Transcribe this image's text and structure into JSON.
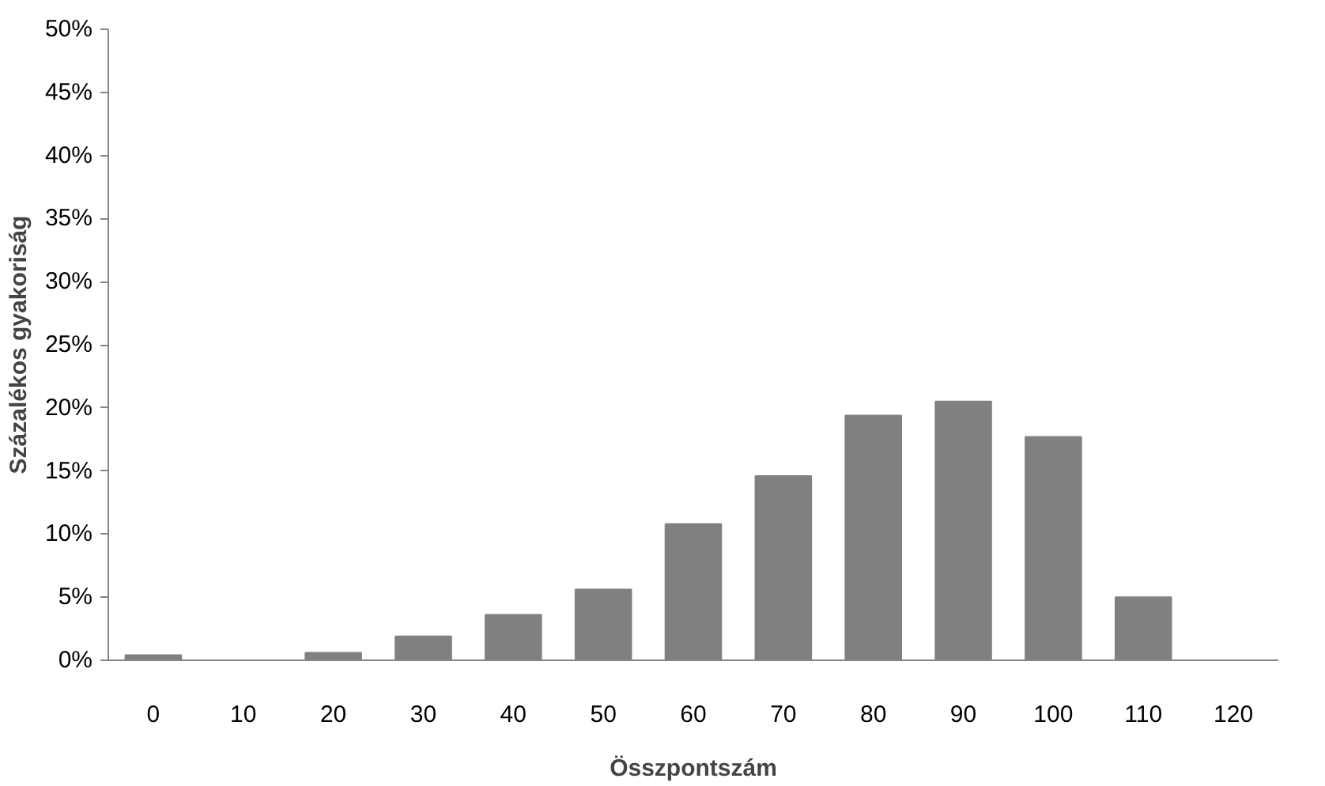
{
  "chart_data": {
    "type": "bar",
    "xlabel": "Összpontszám",
    "ylabel": "Százalékos gyakoriság",
    "categories": [
      "0",
      "10",
      "20",
      "30",
      "40",
      "50",
      "60",
      "70",
      "80",
      "90",
      "100",
      "110",
      "120"
    ],
    "values": [
      0.4,
      0,
      0.6,
      1.9,
      3.6,
      5.6,
      10.8,
      14.6,
      19.4,
      20.5,
      17.7,
      5.0,
      0
    ],
    "color": "#808080",
    "ylim": [
      0,
      50
    ],
    "yticks": [
      {
        "value": 0,
        "label": "0%"
      },
      {
        "value": 5,
        "label": "5%"
      },
      {
        "value": 10,
        "label": "10%"
      },
      {
        "value": 15,
        "label": "15%"
      },
      {
        "value": 20,
        "label": "20%"
      },
      {
        "value": 25,
        "label": "25%"
      },
      {
        "value": 30,
        "label": "30%"
      },
      {
        "value": 35,
        "label": "35%"
      },
      {
        "value": 40,
        "label": "40%"
      },
      {
        "value": 45,
        "label": "45%"
      },
      {
        "value": 50,
        "label": "50%"
      }
    ],
    "grid": false
  }
}
